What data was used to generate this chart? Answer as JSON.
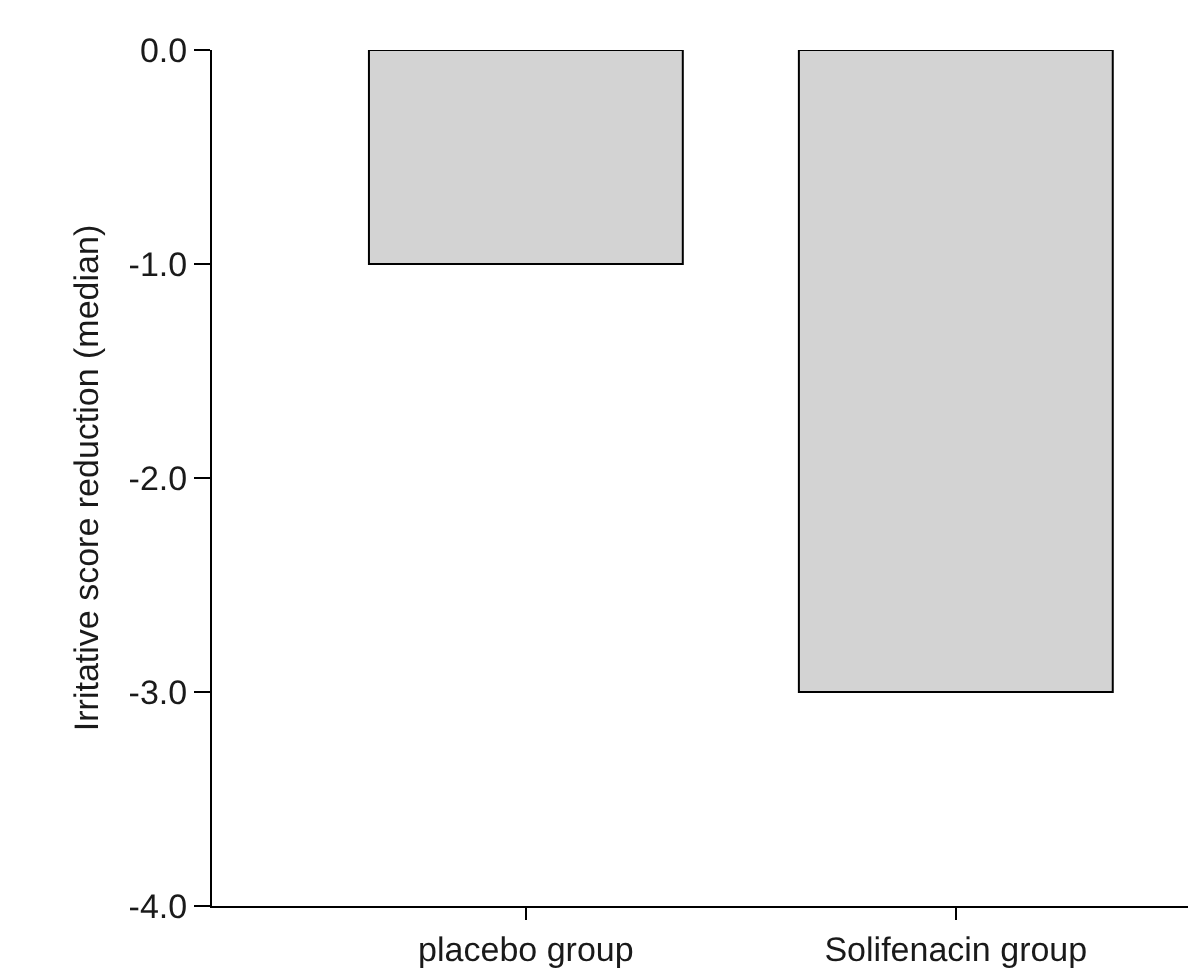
{
  "chart_data": {
    "type": "bar",
    "ylabel": "Irritative score reduction (median)",
    "categories": [
      "placebo group",
      "Solifenacin group"
    ],
    "values": [
      -1.0,
      -3.0
    ],
    "color": "#d3d3d3",
    "ylim": [
      -4.0,
      0.0
    ],
    "yticks": [
      {
        "value": -4.0,
        "label": "-4.0"
      },
      {
        "value": -3.0,
        "label": "-3.0"
      },
      {
        "value": -2.0,
        "label": "-2.0"
      },
      {
        "value": -1.0,
        "label": "-1.0"
      },
      {
        "value": 0.0,
        "label": "0.0"
      }
    ]
  }
}
